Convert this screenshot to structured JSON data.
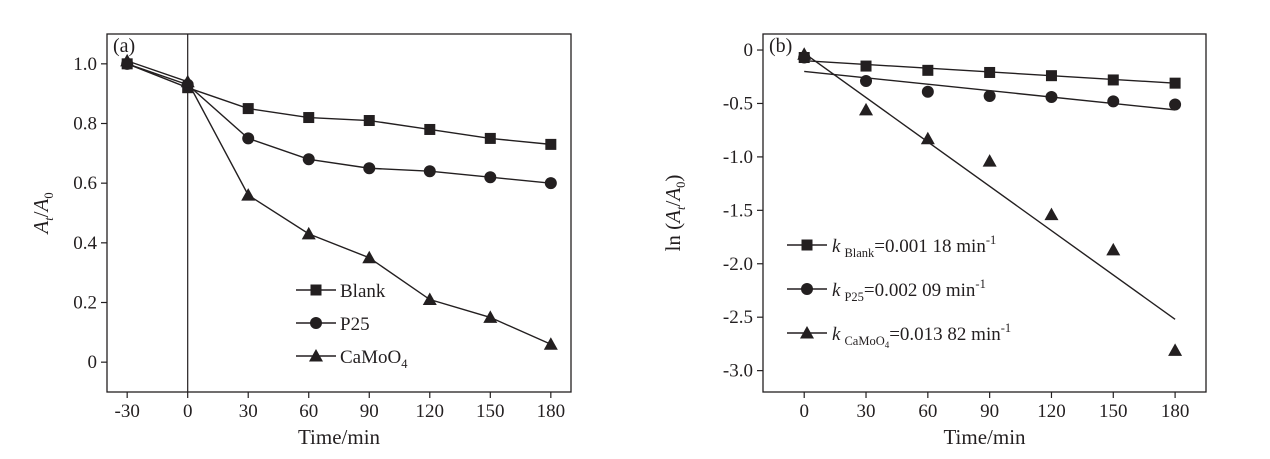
{
  "chart_data": [
    {
      "type": "line",
      "panel_label": "(a)",
      "xlabel": "Time/min",
      "ylabel": {
        "base": "A",
        "sub_t": "t",
        "slash": "/",
        "base2": "A",
        "sub_0": "0"
      },
      "xlim": [
        -40,
        190
      ],
      "ylim": [
        -0.1,
        1.1
      ],
      "xticks": [
        -30,
        0,
        30,
        60,
        90,
        120,
        150,
        180
      ],
      "yticks": [
        0,
        0.2,
        0.4,
        0.6,
        0.8,
        1.0
      ],
      "ytick_labels": [
        "0",
        "0.2",
        "0.4",
        "0.6",
        "0.8",
        "1.0"
      ],
      "vline_x": 0,
      "x": [
        -30,
        0,
        30,
        60,
        90,
        120,
        150,
        180
      ],
      "series": [
        {
          "name": "Blank",
          "marker": "square",
          "values": [
            1.0,
            0.92,
            0.85,
            0.82,
            0.81,
            0.78,
            0.75,
            0.73
          ]
        },
        {
          "name": "P25",
          "marker": "circle",
          "values": [
            1.0,
            0.93,
            0.75,
            0.68,
            0.65,
            0.64,
            0.62,
            0.6
          ]
        },
        {
          "name": "CaMoO",
          "name_sub": "4",
          "marker": "triangle",
          "values": [
            1.01,
            0.94,
            0.56,
            0.43,
            0.35,
            0.21,
            0.15,
            0.06
          ]
        }
      ],
      "legend": "bottom-center"
    },
    {
      "type": "scatter",
      "panel_label": "(b)",
      "xlabel": "Time/min",
      "ylabel": {
        "prefix": "ln (",
        "base": "A",
        "sub_t": "t",
        "slash": "/",
        "base2": "A",
        "sub_0": "0",
        "suffix": ")"
      },
      "xlim": [
        -20,
        195
      ],
      "ylim": [
        -3.2,
        0.15
      ],
      "xticks": [
        0,
        30,
        60,
        90,
        120,
        150,
        180
      ],
      "yticks": [
        0,
        -0.5,
        -1.0,
        -1.5,
        -2.0,
        -2.5,
        -3.0
      ],
      "ytick_labels": [
        "0",
        "-0.5",
        "-1.0",
        "-1.5",
        "-2.0",
        "-2.5",
        "-3.0"
      ],
      "x": [
        0,
        30,
        60,
        90,
        120,
        150,
        180
      ],
      "series": [
        {
          "marker": "square",
          "values": [
            -0.07,
            -0.15,
            -0.19,
            -0.21,
            -0.24,
            -0.28,
            -0.31
          ],
          "fit_endpoints": [
            [
              0,
              -0.1
            ],
            [
              180,
              -0.31
            ]
          ],
          "label": {
            "k": "k",
            "sub": "Blank",
            "value": "=0.001 18 min",
            "sup": "-1"
          }
        },
        {
          "marker": "circle",
          "values": [
            -0.07,
            -0.29,
            -0.39,
            -0.43,
            -0.44,
            -0.48,
            -0.51
          ],
          "fit_endpoints": [
            [
              0,
              -0.2
            ],
            [
              180,
              -0.56
            ]
          ],
          "label": {
            "k": "k",
            "sub": "P25",
            "value": "=0.002 09 min",
            "sup": "-1"
          }
        },
        {
          "marker": "triangle",
          "values": [
            -0.04,
            -0.56,
            -0.83,
            -1.04,
            -1.54,
            -1.87,
            -2.81
          ],
          "fit_endpoints": [
            [
              0,
              -0.03
            ],
            [
              180,
              -2.52
            ]
          ],
          "label": {
            "k": "k",
            "sub": "CaMoO",
            "sub2": "4",
            "value": "=0.013 82 min",
            "sup": "-1"
          }
        }
      ],
      "legend": "middle-left"
    }
  ]
}
